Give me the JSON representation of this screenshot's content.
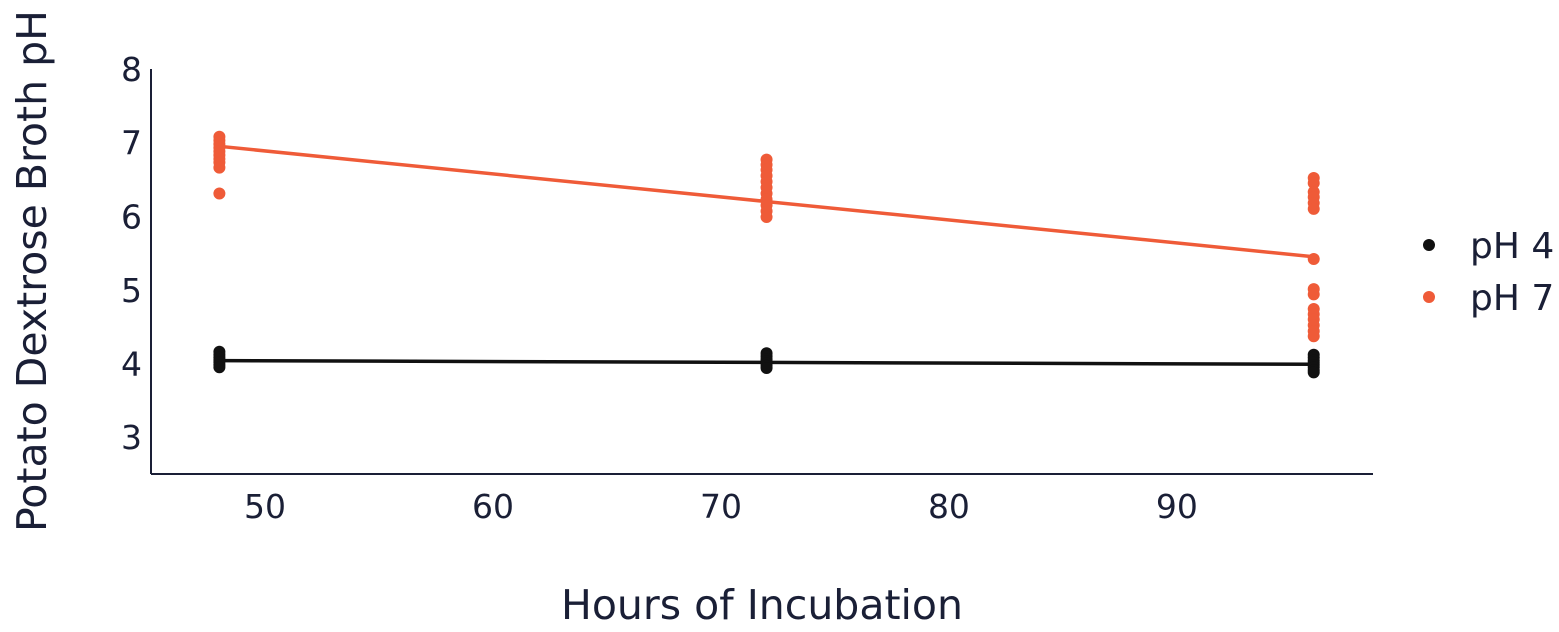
{
  "chart_data": {
    "type": "scatter",
    "title": "",
    "xlabel": "Hours of Incubation",
    "ylabel": "Potato Dextrose Broth pH",
    "xlim": [
      45,
      98.6
    ],
    "ylim": [
      2.5,
      8
    ],
    "xticks": [
      "50",
      "60",
      "70",
      "80",
      "90"
    ],
    "yticks": [
      "3",
      "4",
      "5",
      "6",
      "7",
      "8"
    ],
    "grid": false,
    "legend_position": "right",
    "series": [
      {
        "name": "pH 4",
        "color": "#111111",
        "points": [
          [
            48,
            4.16
          ],
          [
            48,
            4.12
          ],
          [
            48,
            4.08
          ],
          [
            48,
            4.05
          ],
          [
            48,
            4.02
          ],
          [
            48,
            3.98
          ],
          [
            48,
            3.95
          ],
          [
            72,
            4.14
          ],
          [
            72,
            4.1
          ],
          [
            72,
            4.06
          ],
          [
            72,
            4.03
          ],
          [
            72,
            4.0
          ],
          [
            72,
            3.97
          ],
          [
            72,
            3.94
          ],
          [
            96,
            4.12
          ],
          [
            96,
            4.08
          ],
          [
            96,
            4.04
          ],
          [
            96,
            4.01
          ],
          [
            96,
            3.98
          ],
          [
            96,
            3.95
          ],
          [
            96,
            3.91
          ],
          [
            96,
            3.88
          ]
        ],
        "trend": [
          [
            48,
            4.04
          ],
          [
            96,
            3.99
          ]
        ]
      },
      {
        "name": "pH 7",
        "color": "#ef5b38",
        "points": [
          [
            48,
            7.08
          ],
          [
            48,
            7.03
          ],
          [
            48,
            6.98
          ],
          [
            48,
            6.93
          ],
          [
            48,
            6.88
          ],
          [
            48,
            6.83
          ],
          [
            48,
            6.78
          ],
          [
            48,
            6.73
          ],
          [
            48,
            6.66
          ],
          [
            48,
            6.31
          ],
          [
            72,
            6.77
          ],
          [
            72,
            6.7
          ],
          [
            72,
            6.63
          ],
          [
            72,
            6.55
          ],
          [
            72,
            6.47
          ],
          [
            72,
            6.39
          ],
          [
            72,
            6.31
          ],
          [
            72,
            6.23
          ],
          [
            72,
            6.15
          ],
          [
            72,
            6.07
          ],
          [
            72,
            5.99
          ],
          [
            96,
            6.52
          ],
          [
            96,
            6.45
          ],
          [
            96,
            6.33
          ],
          [
            96,
            6.26
          ],
          [
            96,
            6.18
          ],
          [
            96,
            6.1
          ],
          [
            96,
            5.42
          ],
          [
            96,
            5.01
          ],
          [
            96,
            4.94
          ],
          [
            96,
            4.74
          ],
          [
            96,
            4.67
          ],
          [
            96,
            4.6
          ],
          [
            96,
            4.52
          ],
          [
            96,
            4.44
          ],
          [
            96,
            4.37
          ]
        ],
        "trend": [
          [
            48,
            6.95
          ],
          [
            96,
            5.45
          ]
        ]
      }
    ]
  }
}
